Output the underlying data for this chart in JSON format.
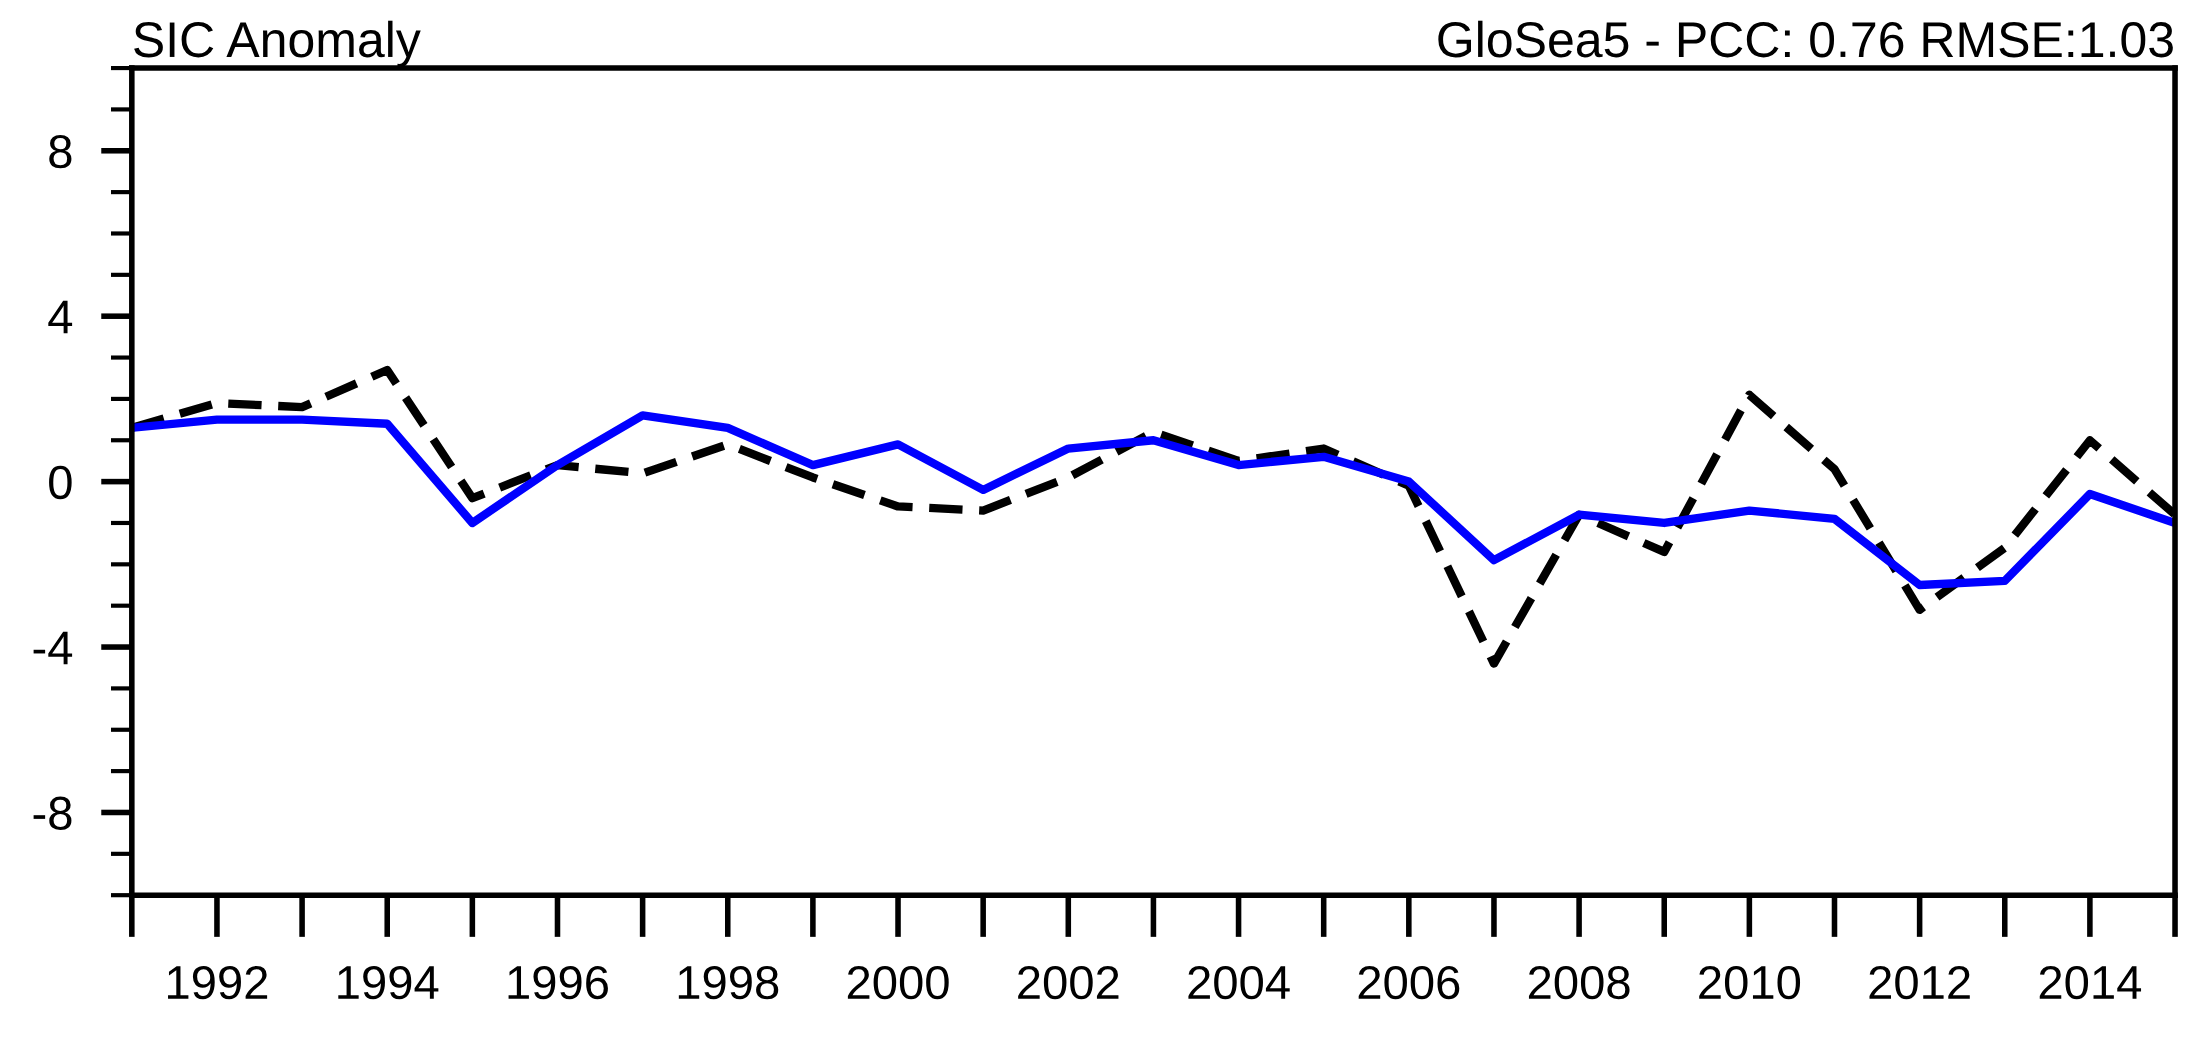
{
  "chart_data": {
    "type": "line",
    "title": "SIC Anomaly",
    "subtitle": "GloSea5 - PCC: 0.76 RMSE:1.03",
    "x": [
      1991,
      1992,
      1993,
      1994,
      1995,
      1996,
      1997,
      1998,
      1999,
      2000,
      2001,
      2002,
      2003,
      2004,
      2005,
      2006,
      2007,
      2008,
      2009,
      2010,
      2011,
      2012,
      2013,
      2014,
      2015
    ],
    "series": [
      {
        "color": "#000000",
        "line_style": "dashed",
        "values": [
          1.3,
          1.9,
          1.8,
          2.7,
          -0.4,
          0.4,
          0.2,
          0.9,
          0.1,
          -0.6,
          -0.7,
          0.1,
          1.2,
          0.5,
          0.8,
          -0.1,
          -4.4,
          -0.8,
          -1.7,
          2.1,
          0.3,
          -3.1,
          -1.6,
          1.0,
          -0.8
        ]
      },
      {
        "color": "#0000ff",
        "line_style": "solid",
        "values": [
          1.3,
          1.5,
          1.5,
          1.4,
          -1.0,
          0.4,
          1.6,
          1.3,
          0.4,
          0.9,
          -0.2,
          0.8,
          1.0,
          0.4,
          0.6,
          0.0,
          -1.9,
          -0.8,
          -1.0,
          -0.7,
          -0.9,
          -2.5,
          -2.4,
          -0.3,
          -1.0
        ]
      }
    ],
    "xlim": [
      1991,
      2015
    ],
    "xticks": [
      1992,
      1994,
      1996,
      1998,
      2000,
      2002,
      2004,
      2006,
      2008,
      2010,
      2012,
      2014
    ],
    "ylim": [
      -10,
      10
    ],
    "yticks": [
      -8,
      -4,
      0,
      4,
      8
    ],
    "grid": false,
    "legend": false,
    "marker": "none"
  }
}
